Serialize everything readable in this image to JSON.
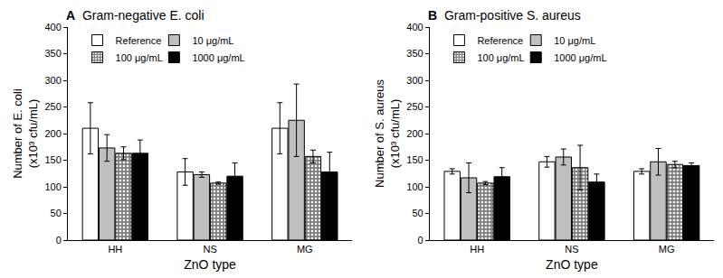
{
  "chart_data": [
    {
      "type": "bar",
      "title": "Gram-negative E. coli",
      "annotations": [
        "A"
      ],
      "x_label": "ZnO type",
      "y_label": "Number of E. coli\n(x10³ cfu/mL)",
      "categories": [
        "HH",
        "NS",
        "MG"
      ],
      "series": [
        {
          "name": "Reference",
          "color": "#ffffff",
          "values": [
            210,
            128,
            210
          ],
          "errors": [
            48,
            25,
            48
          ]
        },
        {
          "name": "10 μg/mL",
          "color": "#bfbfbf",
          "values": [
            173,
            123,
            225
          ],
          "errors": [
            25,
            5,
            68
          ]
        },
        {
          "name": "100 μg/mL",
          "color": "#7f7f7f",
          "marker": "dots",
          "values": [
            163,
            107,
            157
          ],
          "errors": [
            12,
            2,
            12
          ]
        },
        {
          "name": "1000 μg/mL",
          "color": "#000000",
          "values": [
            163,
            120,
            128
          ],
          "errors": [
            25,
            25,
            37
          ]
        }
      ],
      "ylim": [
        0,
        400
      ],
      "yticks": [
        0,
        50,
        100,
        150,
        200,
        250,
        300,
        350,
        400
      ],
      "grid": false,
      "legend": "top-left"
    },
    {
      "type": "bar",
      "title": "Gram-positive S. aureus",
      "annotations": [
        "B"
      ],
      "x_label": "ZnO type",
      "y_label": "Number of S. aureus\n(x10³ cfu/mL)",
      "categories": [
        "HH",
        "NS",
        "MG"
      ],
      "series": [
        {
          "name": "Reference",
          "color": "#ffffff",
          "values": [
            129,
            147,
            129
          ],
          "errors": [
            5,
            10,
            5
          ]
        },
        {
          "name": "10 μg/mL",
          "color": "#bfbfbf",
          "values": [
            117,
            156,
            147
          ],
          "errors": [
            28,
            15,
            25
          ]
        },
        {
          "name": "100 μg/mL",
          "color": "#7f7f7f",
          "marker": "dots",
          "values": [
            107,
            136,
            142
          ],
          "errors": [
            3,
            42,
            6
          ]
        },
        {
          "name": "1000 μg/mL",
          "color": "#000000",
          "values": [
            119,
            109,
            140
          ],
          "errors": [
            17,
            15,
            5
          ]
        }
      ],
      "ylim": [
        0,
        400
      ],
      "yticks": [
        0,
        50,
        100,
        150,
        200,
        250,
        300,
        350,
        400
      ],
      "grid": false,
      "legend": "top-left"
    }
  ]
}
